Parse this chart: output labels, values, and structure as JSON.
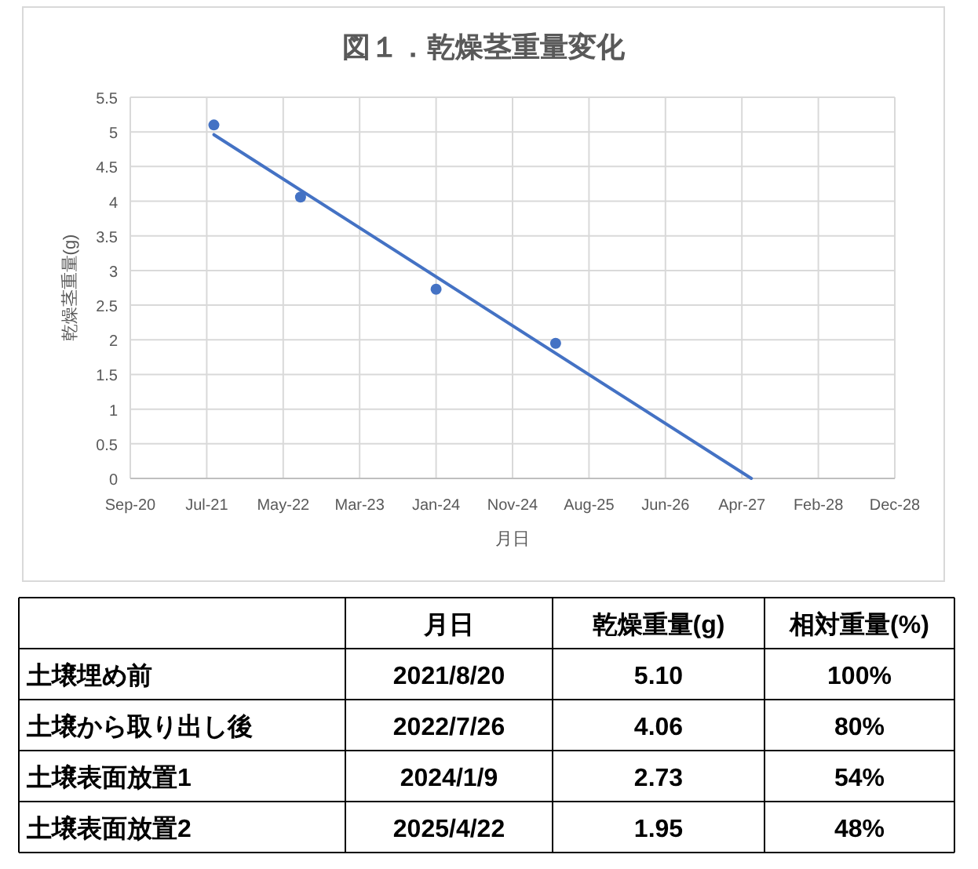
{
  "chart_data": [
    {
      "type": "scatter",
      "title": "図１．乾燥茎重量変化",
      "xlabel": "月日",
      "ylabel": "乾燥茎重量(g)",
      "grid": true,
      "xlim": [
        "2020-09-26",
        "2028-12-13"
      ],
      "xticks": [
        {
          "value": "2020-09-26",
          "label": "Sep-20"
        },
        {
          "value": "2021-07-23",
          "label": "Jul-21"
        },
        {
          "value": "2022-05-19",
          "label": "May-22"
        },
        {
          "value": "2023-03-15",
          "label": "Mar-23"
        },
        {
          "value": "2024-01-09",
          "label": "Jan-24"
        },
        {
          "value": "2024-11-04",
          "label": "Nov-24"
        },
        {
          "value": "2025-08-31",
          "label": "Aug-25"
        },
        {
          "value": "2026-06-27",
          "label": "Jun-26"
        },
        {
          "value": "2027-04-23",
          "label": "Apr-27"
        },
        {
          "value": "2028-02-17",
          "label": "Feb-28"
        },
        {
          "value": "2028-12-13",
          "label": "Dec-28"
        }
      ],
      "ylim": [
        0,
        5.5
      ],
      "yticks": [
        0,
        0.5,
        1,
        1.5,
        2,
        2.5,
        3,
        3.5,
        4,
        4.5,
        5,
        5.5
      ],
      "series": [
        {
          "type": "scatter",
          "color": "#4472c4",
          "marker": "circle",
          "x": [
            "2021-08-20",
            "2022-07-26",
            "2024-01-09",
            "2025-04-22"
          ],
          "values": [
            5.1,
            4.06,
            2.73,
            1.95
          ]
        },
        {
          "type": "line",
          "color": "#4472c4",
          "line_style": "solid",
          "marker": "none",
          "x": [
            "2021-08-20",
            "2027-05-30"
          ],
          "values": [
            4.96,
            0
          ]
        }
      ]
    },
    {
      "type": "other",
      "categories": [
        null,
        "月日",
        "乾燥重量(g)",
        "相対重量(%)"
      ],
      "y_categories": [
        "土壌埋め前",
        "土壌から取り出し後",
        "土壌表面放置1",
        "土壌表面放置2"
      ],
      "cell_labels": [
        [
          "2021/8/20",
          "5.10",
          "100%"
        ],
        [
          "2022/7/26",
          "4.06",
          "80%"
        ],
        [
          "2024/1/9",
          "2.73",
          "54%"
        ],
        [
          "2025/4/22",
          "1.95",
          "48%"
        ]
      ]
    }
  ]
}
